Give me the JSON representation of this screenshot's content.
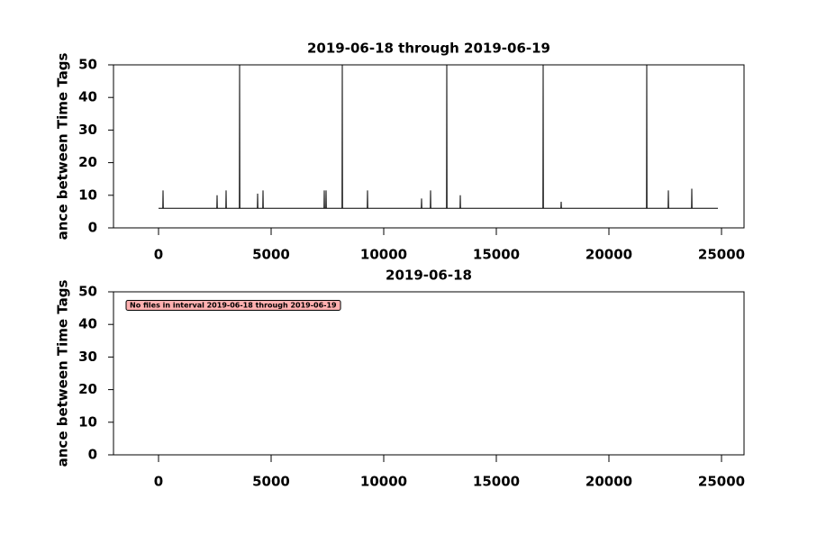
{
  "chart_data": [
    {
      "type": "line",
      "title": "2019-06-18 through 2019-06-19",
      "ylabel": "ance between Time Tags",
      "xlim": [
        -2000,
        26000
      ],
      "ylim": [
        0,
        50
      ],
      "xticks": [
        0,
        5000,
        10000,
        15000,
        20000,
        25000
      ],
      "yticks": [
        0,
        10,
        20,
        30,
        40,
        50
      ],
      "series": [
        {
          "color": "#000000",
          "x": [
            0,
            190,
            200,
            210,
            2590,
            2600,
            2610,
            2990,
            3000,
            3010,
            3590,
            3600,
            3610,
            4390,
            4400,
            4410,
            4630,
            4640,
            4650,
            7350,
            7360,
            7370,
            7430,
            7440,
            7450,
            8150,
            8160,
            8170,
            9270,
            9280,
            9290,
            11670,
            11680,
            11690,
            12070,
            12080,
            12090,
            12790,
            12800,
            12810,
            13390,
            13400,
            13410,
            17070,
            17080,
            17090,
            17870,
            17880,
            17890,
            21670,
            21680,
            21690,
            22630,
            22640,
            22650,
            23670,
            23680,
            23690,
            24840
          ],
          "values": [
            6,
            6,
            11.5,
            6,
            6,
            10,
            6,
            6,
            11.5,
            6,
            6,
            50,
            6,
            6,
            10.5,
            6,
            6,
            11.5,
            6,
            6,
            11.5,
            6,
            6,
            11.5,
            6,
            6,
            50,
            6,
            6,
            11.5,
            6,
            6,
            9,
            6,
            6,
            11.5,
            6,
            6,
            50,
            6,
            6,
            10,
            6,
            6,
            50,
            6,
            6,
            8,
            6,
            6,
            50,
            6,
            6,
            11.5,
            6,
            6,
            12,
            6,
            6
          ]
        }
      ]
    },
    {
      "type": "line",
      "title": "2019-06-18",
      "ylabel": "ance between Time Tags",
      "xlim": [
        -2000,
        26000
      ],
      "ylim": [
        0,
        50
      ],
      "xticks": [
        0,
        5000,
        10000,
        15000,
        20000,
        25000
      ],
      "yticks": [
        0,
        10,
        20,
        30,
        40,
        50
      ],
      "annotation": "No files in interval 2019-06-18 through 2019-06-19",
      "series": []
    }
  ]
}
